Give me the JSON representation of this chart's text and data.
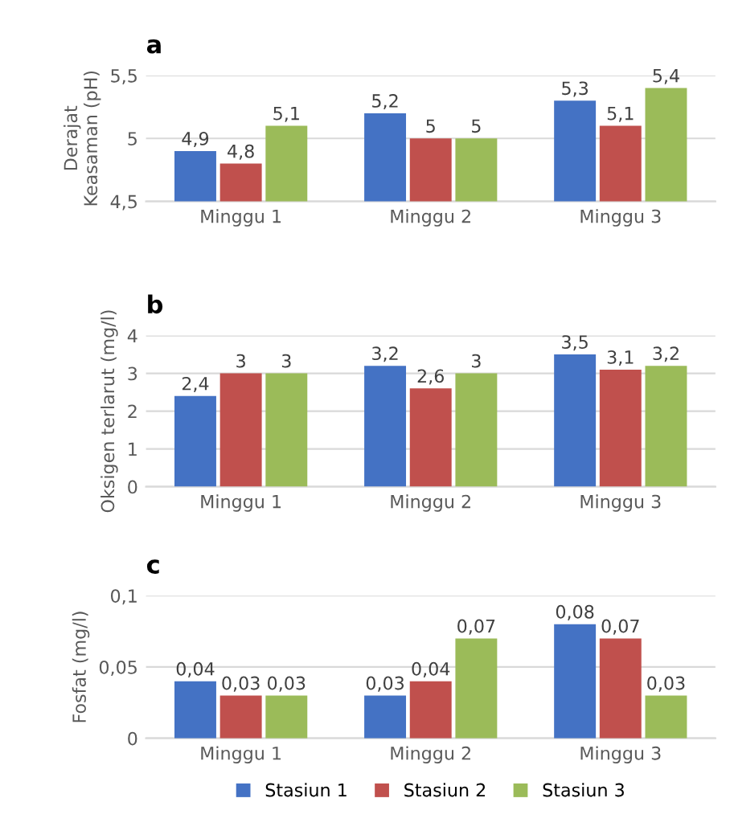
{
  "chart_data": [
    {
      "type": "bar",
      "title": "a",
      "ylabel": "Derajat\nKeasaman (pH)",
      "categories": [
        "Minggu 1",
        "Minggu 2",
        "Minggu 3"
      ],
      "ylim": [
        4.5,
        5.5
      ],
      "yticks": [
        {
          "value": 4.5,
          "label": "4,5"
        },
        5,
        {
          "value": 5.5,
          "label": "5,5"
        }
      ],
      "grid": "y",
      "legend": false,
      "series": [
        {
          "color": "#4472c4",
          "values": [
            4.9,
            5.2,
            5.3
          ],
          "value_labels": [
            "4,9",
            "5,2",
            "5,3"
          ]
        },
        {
          "color": "#c0504d",
          "values": [
            4.8,
            5,
            5.1
          ],
          "value_labels": [
            "4,8",
            "5",
            "5,1"
          ]
        },
        {
          "color": "#9bbb59",
          "values": [
            5.1,
            5,
            5.4
          ],
          "value_labels": [
            "5,1",
            "5",
            "5,4"
          ]
        }
      ]
    },
    {
      "type": "bar",
      "title": "b",
      "ylabel": "Oksigen terlarut (mg/l)",
      "categories": [
        "Minggu 1",
        "Minggu 2",
        "Minggu 3"
      ],
      "ylim": [
        0,
        4
      ],
      "yticks": [
        0,
        1,
        2,
        3,
        4
      ],
      "grid": "y",
      "legend": false,
      "series": [
        {
          "color": "#4472c4",
          "values": [
            2.4,
            3.2,
            3.5
          ],
          "value_labels": [
            "2,4",
            "3,2",
            "3,5"
          ]
        },
        {
          "color": "#c0504d",
          "values": [
            3,
            2.6,
            3.1
          ],
          "value_labels": [
            "3",
            "2,6",
            "3,1"
          ]
        },
        {
          "color": "#9bbb59",
          "values": [
            3,
            3,
            3.2
          ],
          "value_labels": [
            "3",
            "3",
            "3,2"
          ]
        }
      ]
    },
    {
      "type": "bar",
      "title": "c",
      "ylabel": "Fosfat (mg/l)",
      "categories": [
        "Minggu 1",
        "Minggu 2",
        "Minggu 3"
      ],
      "ylim": [
        0,
        0.1
      ],
      "yticks": [
        0,
        {
          "value": 0.05,
          "label": "0,05"
        },
        {
          "value": 0.1,
          "label": "0,1"
        }
      ],
      "grid": "y",
      "legend": "bottom",
      "series": [
        {
          "name": "Stasiun 1",
          "color": "#4472c4",
          "values": [
            0.04,
            0.03,
            0.08
          ],
          "value_labels": [
            "0,04",
            "0,03",
            "0,08"
          ]
        },
        {
          "name": "Stasiun 2",
          "color": "#c0504d",
          "values": [
            0.03,
            0.04,
            0.07
          ],
          "value_labels": [
            "0,03",
            "0,04",
            "0,07"
          ]
        },
        {
          "name": "Stasiun 3",
          "color": "#9bbb59",
          "values": [
            0.03,
            0.07,
            0.03
          ],
          "value_labels": [
            "0,03",
            "0,07",
            "0,03"
          ]
        }
      ]
    }
  ]
}
